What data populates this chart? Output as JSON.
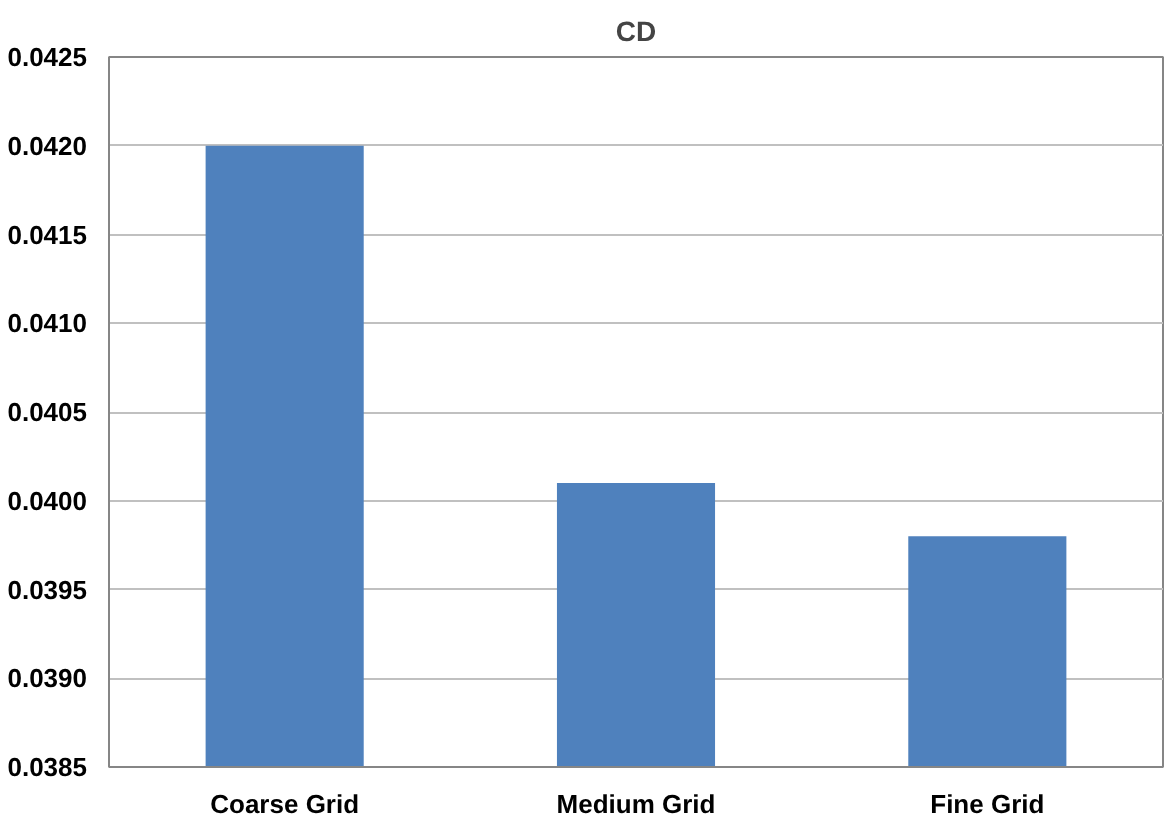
{
  "chart_data": {
    "type": "bar",
    "title": "CD",
    "categories": [
      "Coarse Grid",
      "Medium Grid",
      "Fine Grid"
    ],
    "values": [
      0.042,
      0.0401,
      0.0398
    ],
    "color": "#4f81bd",
    "ylim": [
      0.0385,
      0.0425
    ],
    "yticks": [
      {
        "value": 0.0385,
        "label": "0.0385"
      },
      {
        "value": 0.039,
        "label": "0.0390"
      },
      {
        "value": 0.0395,
        "label": "0.0395"
      },
      {
        "value": 0.04,
        "label": "0.0400"
      },
      {
        "value": 0.0405,
        "label": "0.0405"
      },
      {
        "value": 0.041,
        "label": "0.0410"
      },
      {
        "value": 0.0415,
        "label": "0.0415"
      },
      {
        "value": 0.042,
        "label": "0.0420"
      },
      {
        "value": 0.0425,
        "label": "0.0425"
      }
    ],
    "grid": "y"
  }
}
